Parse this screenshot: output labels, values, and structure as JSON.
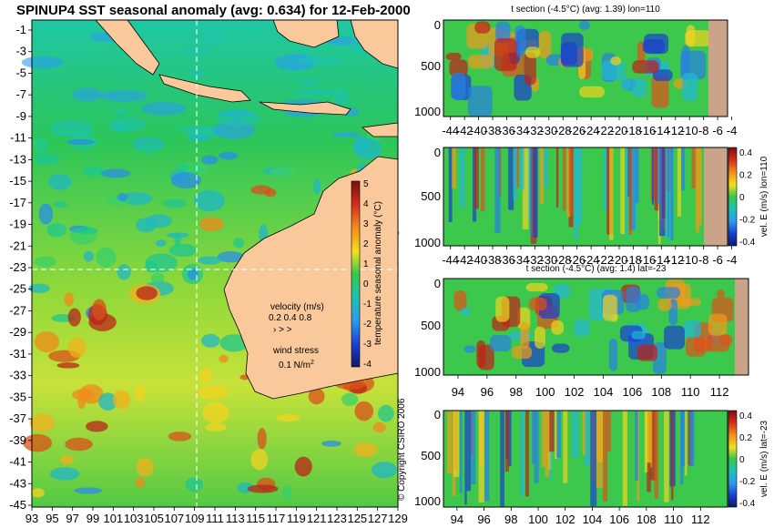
{
  "main_map": {
    "title": "SPINUP4 SST seasonal anomaly (avg: 0.634) for 12-Feb-2000",
    "type": "heatmap",
    "x_ticks": [
      "93",
      "95",
      "97",
      "99",
      "101",
      "103",
      "105",
      "107",
      "109",
      "111",
      "113",
      "115",
      "117",
      "119",
      "121",
      "123",
      "125",
      "127",
      "129"
    ],
    "y_ticks": [
      "-1",
      "-3",
      "-5",
      "-7",
      "-9",
      "-11",
      "-13",
      "-15",
      "-17",
      "-19",
      "-21",
      "-23",
      "-25",
      "-27",
      "-29",
      "-31",
      "-33",
      "-35",
      "-37",
      "-39",
      "-41",
      "-43",
      "-45"
    ],
    "colorbar": {
      "label": "temperature seasonal anomaly (°C)",
      "ticks": [
        "5",
        "4",
        "3",
        "2",
        "1",
        "0",
        "-1",
        "-2",
        "-3",
        "-4"
      ]
    },
    "velocity_legend": {
      "title": "velocity (m/s)",
      "values": "0.2 0.4 0.8"
    },
    "wind_legend": {
      "title": "wind stress",
      "value": "0.1 N/m",
      "exponent": "2"
    },
    "copyright": "© Copyright CSIRO 2006",
    "colors": {
      "land": "#f9c89b",
      "warm": "#c0201e",
      "neutral": "#22c44a",
      "cool": "#1a4fd8",
      "arrows": "#d94fd9"
    }
  },
  "chart_data": [
    {
      "type": "heatmap",
      "title": "t section (-4.5°C) (avg: 1.39) lon=110",
      "x_ticks": [
        "-44",
        "-42",
        "-40",
        "-38",
        "-36",
        "-34",
        "-32",
        "-30",
        "-28",
        "-26",
        "-24",
        "-22",
        "-20",
        "-18",
        "-16",
        "-14",
        "-12",
        "-10",
        "-8",
        "-6",
        "-4"
      ],
      "y_ticks": [
        "0",
        "500",
        "1000"
      ],
      "ylim": [
        1050,
        0
      ],
      "xlim": [
        -45,
        -2
      ]
    },
    {
      "type": "heatmap",
      "title": "",
      "x_ticks": [
        "-44",
        "-42",
        "-40",
        "-38",
        "-36",
        "-34",
        "-32",
        "-30",
        "-28",
        "-26",
        "-24",
        "-22",
        "-20",
        "-18",
        "-16",
        "-14",
        "-12",
        "-10",
        "-8",
        "-6",
        "-4"
      ],
      "y_ticks": [
        "0",
        "500",
        "1000"
      ],
      "colorbar": {
        "label": "vel. E (m/s) lon=110",
        "ticks": [
          "0.4",
          "0.2",
          "0",
          "-0.2",
          "-0.4"
        ]
      },
      "xlim": [
        -45,
        -2
      ]
    },
    {
      "type": "heatmap",
      "title": "t section (-4.5°C) (avg: 1.4) lat=-23",
      "x_ticks": [
        "94",
        "96",
        "98",
        "100",
        "102",
        "104",
        "106",
        "108",
        "110",
        "112"
      ],
      "y_ticks": [
        "0",
        "500",
        "1000"
      ],
      "xlim": [
        93,
        114
      ]
    },
    {
      "type": "heatmap",
      "title": "",
      "x_ticks": [
        "94",
        "96",
        "98",
        "100",
        "102",
        "104",
        "106",
        "108",
        "110",
        "112"
      ],
      "y_ticks": [
        "0",
        "500",
        "1000"
      ],
      "colorbar": {
        "label": "vel. E (m/s) lat=-23",
        "ticks": [
          "0.4",
          "0.2",
          "0",
          "-0.2",
          "-0.4"
        ]
      },
      "xlim": [
        93,
        114
      ]
    }
  ]
}
